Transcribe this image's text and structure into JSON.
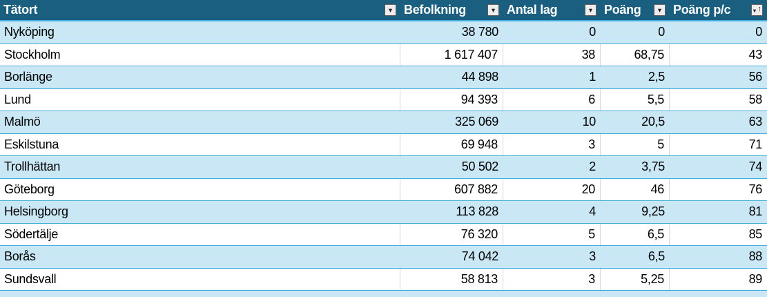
{
  "table": {
    "columns": [
      {
        "id": "tatort",
        "label": "Tätort",
        "align": "left",
        "filter_icon": "dropdown"
      },
      {
        "id": "befolkning",
        "label": "Befolkning",
        "align": "right",
        "filter_icon": "dropdown"
      },
      {
        "id": "antal_lag",
        "label": "Antal lag",
        "align": "right",
        "filter_icon": "dropdown"
      },
      {
        "id": "poang",
        "label": "Poäng",
        "align": "right",
        "filter_icon": "dropdown"
      },
      {
        "id": "poang_pc",
        "label": "Poäng p/c",
        "align": "right",
        "filter_icon": "dropdown-sort-ascending"
      }
    ],
    "rows": [
      {
        "tatort": "Nyköping",
        "befolkning": "38 780",
        "antal_lag": "0",
        "poang": "0",
        "poang_pc": "0"
      },
      {
        "tatort": "Stockholm",
        "befolkning": "1 617 407",
        "antal_lag": "38",
        "poang": "68,75",
        "poang_pc": "43"
      },
      {
        "tatort": "Borlänge",
        "befolkning": "44 898",
        "antal_lag": "1",
        "poang": "2,5",
        "poang_pc": "56"
      },
      {
        "tatort": "Lund",
        "befolkning": "94 393",
        "antal_lag": "6",
        "poang": "5,5",
        "poang_pc": "58"
      },
      {
        "tatort": "Malmö",
        "befolkning": "325 069",
        "antal_lag": "10",
        "poang": "20,5",
        "poang_pc": "63"
      },
      {
        "tatort": "Eskilstuna",
        "befolkning": "69 948",
        "antal_lag": "3",
        "poang": "5",
        "poang_pc": "71"
      },
      {
        "tatort": "Trollhättan",
        "befolkning": "50 502",
        "antal_lag": "2",
        "poang": "3,75",
        "poang_pc": "74"
      },
      {
        "tatort": "Göteborg",
        "befolkning": "607 882",
        "antal_lag": "20",
        "poang": "46",
        "poang_pc": "76"
      },
      {
        "tatort": "Helsingborg",
        "befolkning": "113 828",
        "antal_lag": "4",
        "poang": "9,25",
        "poang_pc": "81"
      },
      {
        "tatort": "Södertälje",
        "befolkning": "76 320",
        "antal_lag": "5",
        "poang": "6,5",
        "poang_pc": "85"
      },
      {
        "tatort": "Borås",
        "befolkning": "74 042",
        "antal_lag": "3",
        "poang": "6,5",
        "poang_pc": "88"
      },
      {
        "tatort": "Sundsvall",
        "befolkning": "58 813",
        "antal_lag": "3",
        "poang": "5,25",
        "poang_pc": "89"
      }
    ]
  },
  "icons": {
    "dropdown": "▾",
    "sort_ascending": "↑"
  },
  "colors": {
    "header_bg": "#1A5F80",
    "header_text": "#FFFFFF",
    "band_row_bg": "#C9E7F5",
    "white_row_bg": "#FFFFFF",
    "row_border": "#45AADD",
    "gridline": "#D8D8D8",
    "button_bg": "#EDEDED",
    "button_border": "#5F5F5F",
    "text": "#000000"
  }
}
